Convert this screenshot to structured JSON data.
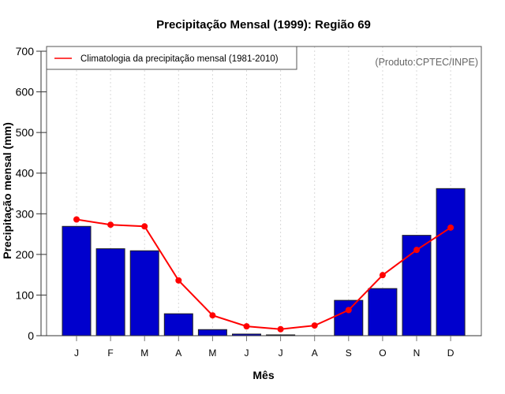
{
  "chart_data": {
    "type": "bar",
    "title": "Precipitação Mensal (1999): Região 69",
    "xlabel": "Mês",
    "ylabel": "Precipitação mensal (mm)",
    "ylim": [
      0,
      700
    ],
    "yticks": [
      0,
      100,
      200,
      300,
      400,
      500,
      600,
      700
    ],
    "categories": [
      "J",
      "F",
      "M",
      "A",
      "M",
      "J",
      "J",
      "A",
      "S",
      "O",
      "N",
      "D"
    ],
    "grid": "vertical dotted",
    "series": [
      {
        "name": "Precipitação mensal (1999)",
        "type": "bar",
        "color": "#0000CD",
        "values": [
          269,
          214,
          209,
          54,
          15,
          4,
          2,
          0,
          87,
          116,
          247,
          362
        ]
      },
      {
        "name": "Climatologia da precipitação mensal (1981-2010)",
        "type": "line",
        "color": "#FF0000",
        "values": [
          286,
          273,
          269,
          136,
          50,
          23,
          16,
          25,
          63,
          149,
          211,
          266
        ]
      }
    ],
    "legend": {
      "placement": "top-left",
      "entries": [
        "Climatologia da precipitação mensal (1981-2010)"
      ]
    },
    "annotation": "(Produto:CPTEC/INPE)"
  }
}
